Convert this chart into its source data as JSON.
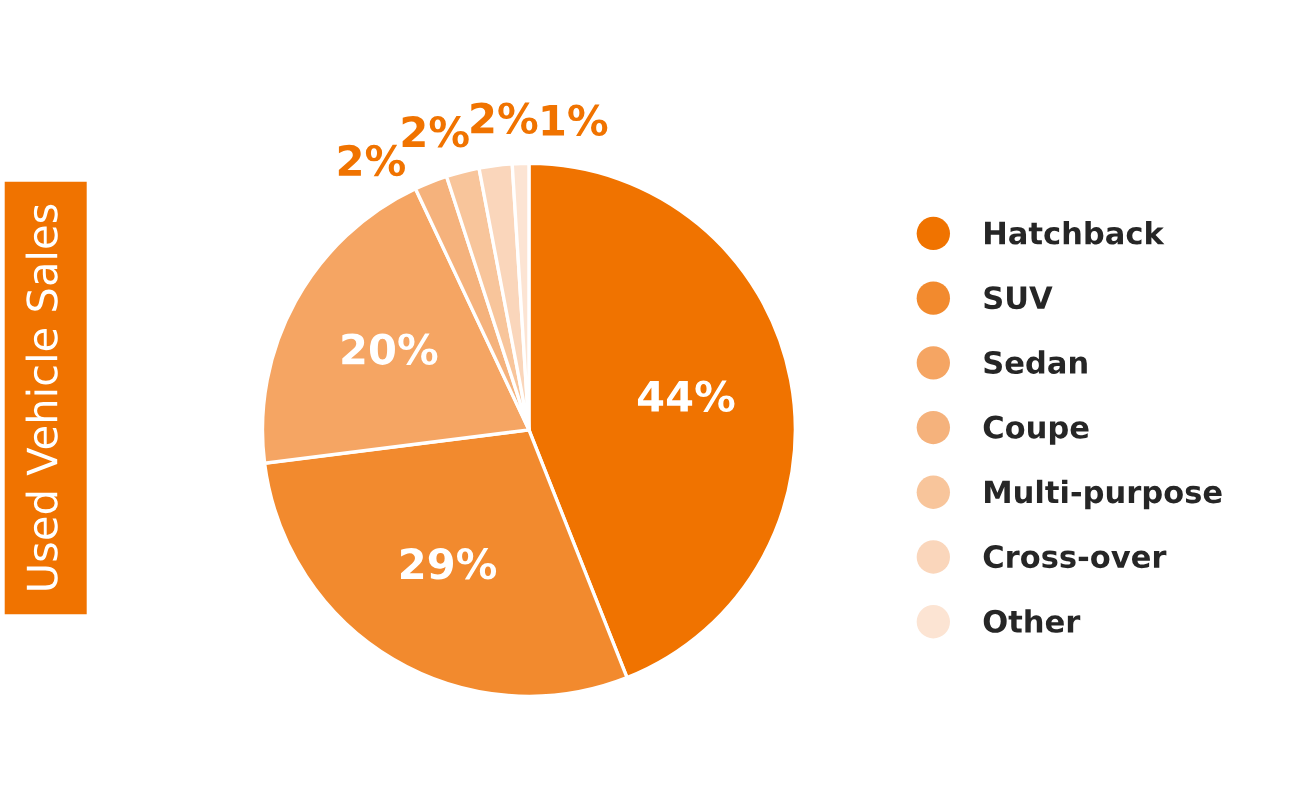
{
  "chart_data": {
    "type": "pie",
    "title": "Used Vehicle Sales",
    "categories": [
      "Hatchback",
      "SUV",
      "Sedan",
      "Coupe",
      "Multi-purpose",
      "Cross-over",
      "Other"
    ],
    "values": [
      44,
      29,
      20,
      2,
      2,
      2,
      1
    ],
    "colors": [
      "#f07300",
      "#f28a2e",
      "#f5a563",
      "#f5b27c",
      "#f8c59b",
      "#fad6bb",
      "#fce4d3"
    ],
    "value_labels": [
      "44%",
      "29%",
      "20%",
      "2%",
      "2%",
      "2%",
      "1%"
    ],
    "legend": "right"
  }
}
